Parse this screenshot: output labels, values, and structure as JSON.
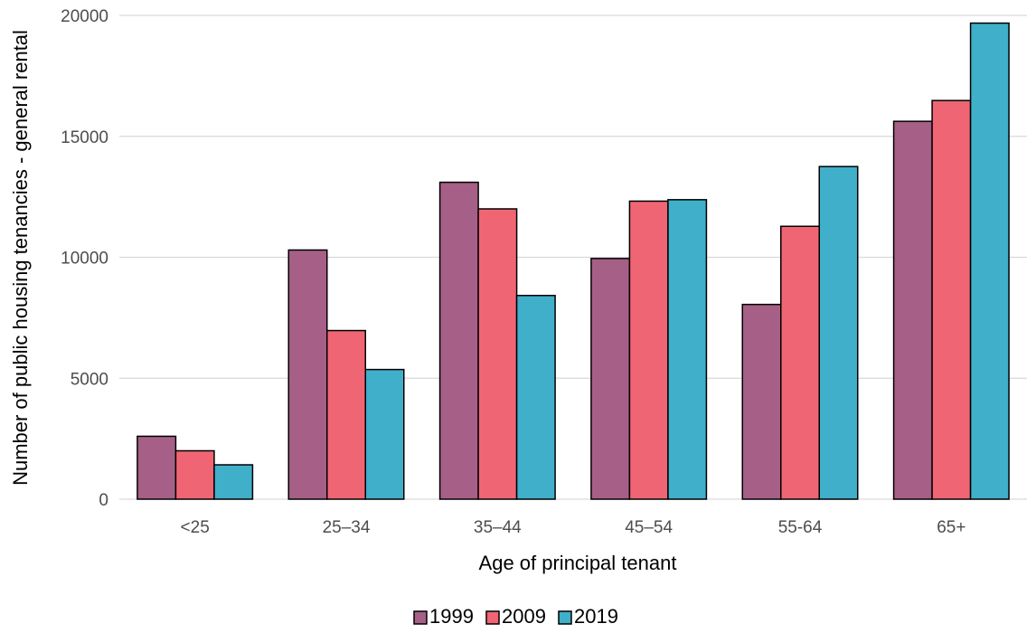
{
  "chart_data": {
    "type": "bar",
    "title": "",
    "xlabel": "Age of principal tenant",
    "ylabel": "Number of public housing tenancies - general rental",
    "categories": [
      "<25",
      "25–34",
      "35–44",
      "45–54",
      "55-64",
      "65+"
    ],
    "series": [
      {
        "name": "1999",
        "color": "#a65f86",
        "values": [
          2600,
          10300,
          13100,
          9950,
          8050,
          15620
        ]
      },
      {
        "name": "2009",
        "color": "#f06574",
        "values": [
          2000,
          6970,
          12000,
          12320,
          11280,
          16480
        ]
      },
      {
        "name": "2019",
        "color": "#40afc9",
        "values": [
          1420,
          5360,
          8420,
          12380,
          13750,
          19680
        ]
      }
    ],
    "ylim": [
      0,
      20000
    ],
    "yticks": [
      0,
      5000,
      10000,
      15000,
      20000
    ],
    "grid": true,
    "legend_position": "bottom"
  }
}
